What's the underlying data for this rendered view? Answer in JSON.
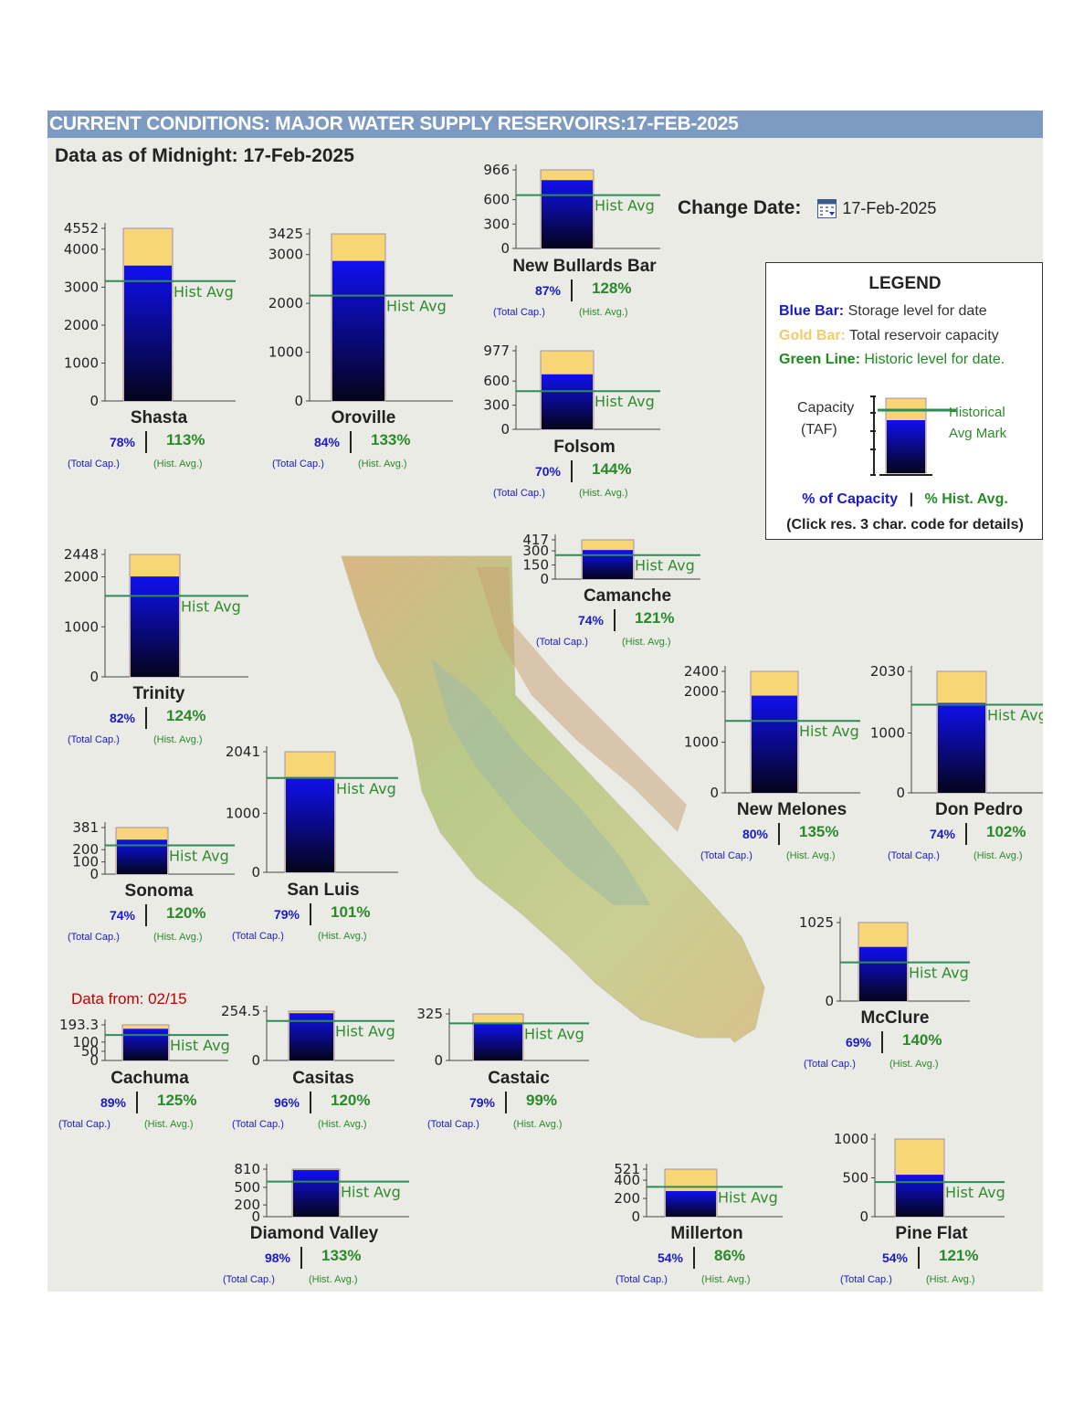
{
  "header": {
    "title": "CURRENT CONDITIONS: MAJOR WATER SUPPLY RESERVOIRS:17-FEB-2025",
    "asof": "Data as of Midnight: 17-Feb-2025",
    "change_date_label": "Change Date:",
    "change_date_value": "17-Feb-2025",
    "calendar_icon": "calendar-icon"
  },
  "legend": {
    "title": "LEGEND",
    "blue_label": "Blue Bar:",
    "blue_text": "Storage level for date",
    "gold_label": "Gold Bar:",
    "gold_text": "Total reservoir capacity",
    "green_label": "Green Line:",
    "green_text": "Historic level for date.",
    "capacity_label": "Capacity",
    "taf_label": "(TAF)",
    "historical_label": "Historical",
    "avg_mark_label": "Avg Mark",
    "pct_capacity": "% of Capacity",
    "pct_hist": "% Hist. Avg.",
    "separator": "|",
    "click_note": "(Click res. 3 char. code for details)"
  },
  "labels": {
    "hist_avg": "Hist Avg",
    "total_cap": "(Total Cap.)",
    "hist_avg_small": "(Hist. Avg.)"
  },
  "data_from": "Data from: 02/15",
  "colors": {
    "gold": "#f8d676",
    "blue_top": "#1010f0",
    "blue_bottom": "#04041a",
    "hist_line": "#2e8b57",
    "title_bar": "#7d9bc2",
    "pct_capacity": "#1a1ac8",
    "pct_hist": "#2a8a2a"
  },
  "chart_data": [
    {
      "type": "bar",
      "name": "Shasta",
      "capacity": 4552,
      "storage": 3570,
      "hist_avg": 3160,
      "ticks": [
        "4552",
        "4000",
        "3000",
        "2000",
        "1000",
        "0"
      ],
      "pct_capacity": "78%",
      "pct_hist": "113%"
    },
    {
      "type": "bar",
      "name": "Oroville",
      "capacity": 3425,
      "storage": 2870,
      "hist_avg": 2160,
      "ticks": [
        "3425",
        "3000",
        "2000",
        "1000",
        "0"
      ],
      "pct_capacity": "84%",
      "pct_hist": "133%"
    },
    {
      "type": "bar",
      "name": "New Bullards Bar",
      "capacity": 966,
      "storage": 840,
      "hist_avg": 656,
      "ticks": [
        "966",
        "600",
        "300",
        "0"
      ],
      "pct_capacity": "87%",
      "pct_hist": "128%"
    },
    {
      "type": "bar",
      "name": "Folsom",
      "capacity": 977,
      "storage": 684,
      "hist_avg": 475,
      "ticks": [
        "977",
        "600",
        "300",
        "0"
      ],
      "pct_capacity": "70%",
      "pct_hist": "144%"
    },
    {
      "type": "bar",
      "name": "Trinity",
      "capacity": 2448,
      "storage": 2007,
      "hist_avg": 1619,
      "ticks": [
        "2448",
        "2000",
        "1000",
        "0"
      ],
      "pct_capacity": "82%",
      "pct_hist": "124%"
    },
    {
      "type": "bar",
      "name": "Camanche",
      "capacity": 417,
      "storage": 309,
      "hist_avg": 255,
      "ticks": [
        "417",
        "300",
        "150",
        "0"
      ],
      "pct_capacity": "74%",
      "pct_hist": "121%"
    },
    {
      "type": "bar",
      "name": "New Melones",
      "capacity": 2400,
      "storage": 1920,
      "hist_avg": 1422,
      "ticks": [
        "2400",
        "2000",
        "1000",
        "0"
      ],
      "pct_capacity": "80%",
      "pct_hist": "135%"
    },
    {
      "type": "bar",
      "name": "Don Pedro",
      "capacity": 2030,
      "storage": 1502,
      "hist_avg": 1473,
      "ticks": [
        "2030",
        "1000",
        "0"
      ],
      "pct_capacity": "74%",
      "pct_hist": "102%"
    },
    {
      "type": "bar",
      "name": "San Luis",
      "capacity": 2041,
      "storage": 1612,
      "hist_avg": 1596,
      "ticks": [
        "2041",
        "1000",
        "0"
      ],
      "pct_capacity": "79%",
      "pct_hist": "101%"
    },
    {
      "type": "bar",
      "name": "Sonoma",
      "capacity": 381,
      "storage": 282,
      "hist_avg": 235,
      "ticks": [
        "381",
        "200",
        "100",
        "0"
      ],
      "pct_capacity": "74%",
      "pct_hist": "120%"
    },
    {
      "type": "bar",
      "name": "McClure",
      "capacity": 1025,
      "storage": 707,
      "hist_avg": 505,
      "ticks": [
        "1025",
        "0"
      ],
      "pct_capacity": "69%",
      "pct_hist": "140%"
    },
    {
      "type": "bar",
      "name": "Cachuma",
      "capacity": 193.3,
      "storage": 172,
      "hist_avg": 138,
      "ticks": [
        "193.3",
        "100",
        "50",
        "0"
      ],
      "pct_capacity": "89%",
      "pct_hist": "125%"
    },
    {
      "type": "bar",
      "name": "Casitas",
      "capacity": 254.5,
      "storage": 244,
      "hist_avg": 204,
      "ticks": [
        "254.5",
        "0"
      ],
      "pct_capacity": "96%",
      "pct_hist": "120%"
    },
    {
      "type": "bar",
      "name": "Castaic",
      "capacity": 325,
      "storage": 257,
      "hist_avg": 259,
      "ticks": [
        "325",
        "0"
      ],
      "pct_capacity": "79%",
      "pct_hist": "99%"
    },
    {
      "type": "bar",
      "name": "Diamond Valley",
      "capacity": 810,
      "storage": 794,
      "hist_avg": 597,
      "ticks": [
        "810",
        "500",
        "200",
        "0"
      ],
      "pct_capacity": "98%",
      "pct_hist": "133%"
    },
    {
      "type": "bar",
      "name": "Millerton",
      "capacity": 521,
      "storage": 281,
      "hist_avg": 327,
      "ticks": [
        "521",
        "400",
        "200",
        "0"
      ],
      "pct_capacity": "54%",
      "pct_hist": "86%"
    },
    {
      "type": "bar",
      "name": "Pine Flat",
      "capacity": 1000,
      "storage": 540,
      "hist_avg": 446,
      "ticks": [
        "1000",
        "500",
        "0"
      ],
      "pct_capacity": "54%",
      "pct_hist": "121%"
    }
  ]
}
